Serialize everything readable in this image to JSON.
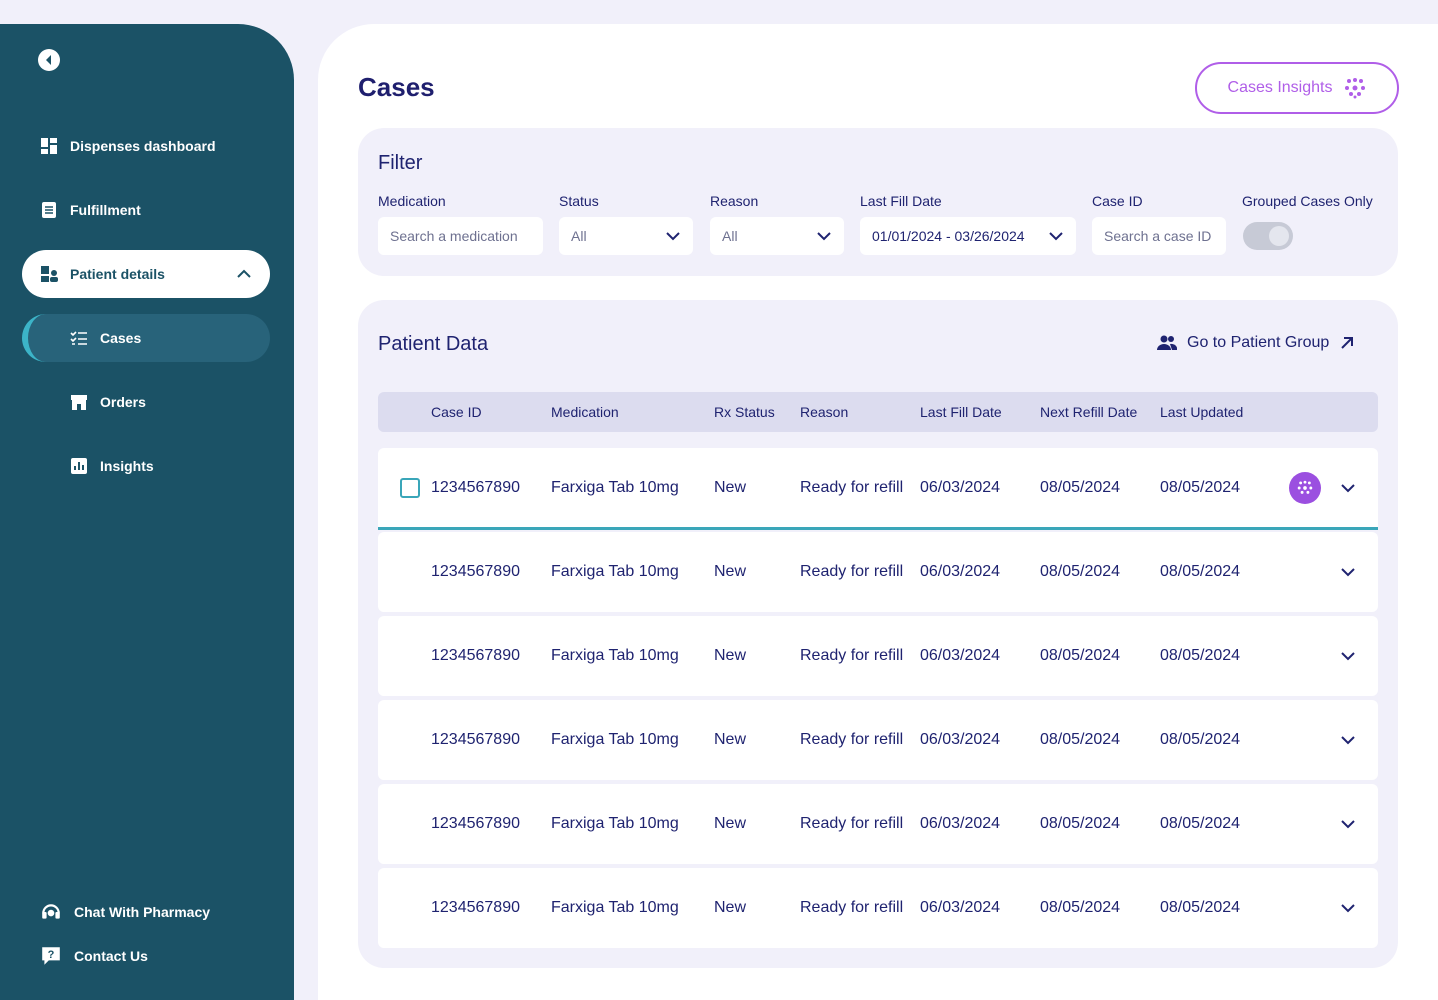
{
  "sidebar": {
    "nav": [
      "Dispenses dashboard",
      "Fulfillment",
      "Patient details"
    ],
    "subnav": [
      "Cases",
      "Orders",
      "Insights"
    ],
    "footer": [
      "Chat With Pharmacy",
      "Contact Us"
    ]
  },
  "header": {
    "title": "Cases",
    "button": "Cases Insights"
  },
  "filter": {
    "title": "Filter",
    "fields": [
      {
        "label": "Medication",
        "placeholder": "Search a medication"
      },
      {
        "label": "Status",
        "value": "All"
      },
      {
        "label": "Reason",
        "value": "All"
      },
      {
        "label": "Last Fill Date",
        "value": "01/01/2024 - 03/26/2024"
      },
      {
        "label": "Case ID",
        "placeholder": "Search a case ID"
      }
    ],
    "toggle_label": "Grouped Cases Only"
  },
  "patient_data": {
    "title": "Patient Data",
    "link": "Go to Patient Group",
    "columns": [
      "Case ID",
      "Medication",
      "Rx Status",
      "Reason",
      "Last Fill Date",
      "Next Refill Date",
      "Last Updated"
    ],
    "rows": [
      [
        "1234567890",
        "Farxiga Tab 10mg",
        "New",
        "Ready for refill",
        "06/03/2024",
        "08/05/2024",
        "08/05/2024"
      ],
      [
        "1234567890",
        "Farxiga Tab 10mg",
        "New",
        "Ready for refill",
        "06/03/2024",
        "08/05/2024",
        "08/05/2024"
      ],
      [
        "1234567890",
        "Farxiga Tab 10mg",
        "New",
        "Ready for refill",
        "06/03/2024",
        "08/05/2024",
        "08/05/2024"
      ],
      [
        "1234567890",
        "Farxiga Tab 10mg",
        "New",
        "Ready for refill",
        "06/03/2024",
        "08/05/2024",
        "08/05/2024"
      ],
      [
        "1234567890",
        "Farxiga Tab 10mg",
        "New",
        "Ready for refill",
        "06/03/2024",
        "08/05/2024",
        "08/05/2024"
      ],
      [
        "1234567890",
        "Farxiga Tab 10mg",
        "New",
        "Ready for refill",
        "06/03/2024",
        "08/05/2024",
        "08/05/2024"
      ]
    ]
  }
}
